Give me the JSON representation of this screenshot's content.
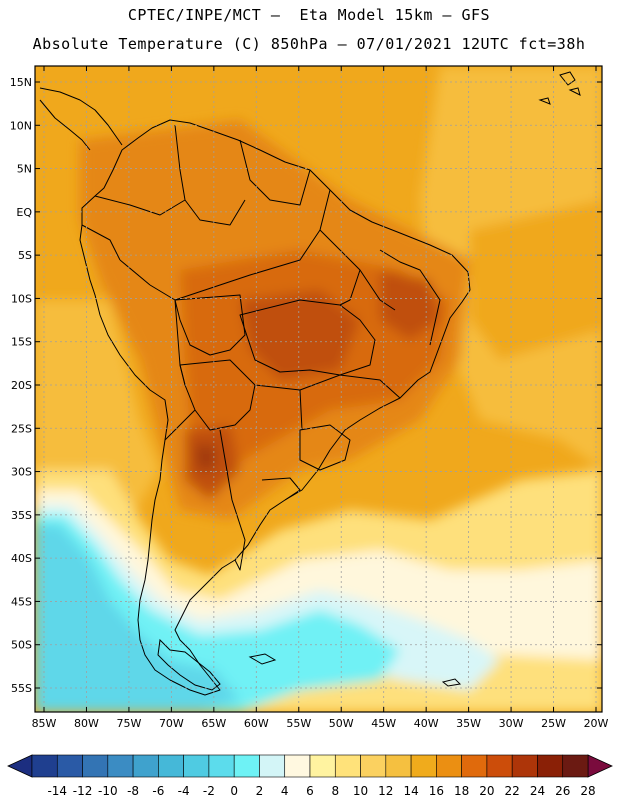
{
  "header": {
    "line1": "CPTEC/INPE/MCT –  Eta Model 15km – GFS",
    "line2": "Absolute Temperature (C) 850hPa – 07/01/2021 12UTC fct=38h"
  },
  "map": {
    "lat_labels": [
      "15N",
      "10N",
      "5N",
      "EQ",
      "5S",
      "10S",
      "15S",
      "20S",
      "25S",
      "30S",
      "35S",
      "40S",
      "45S",
      "50S",
      "55S"
    ],
    "lon_labels": [
      "85W",
      "80W",
      "75W",
      "70W",
      "65W",
      "60W",
      "55W",
      "50W",
      "45W",
      "40W",
      "35W",
      "30W",
      "25W",
      "20W"
    ],
    "lat_values": [
      15,
      10,
      5,
      0,
      -5,
      -10,
      -15,
      -20,
      -25,
      -30,
      -35,
      -40,
      -45,
      -50,
      -55
    ],
    "lon_values": [
      -85,
      -80,
      -75,
      -70,
      -65,
      -60,
      -55,
      -50,
      -45,
      -40,
      -35,
      -30,
      -25,
      -20
    ]
  },
  "colorbar": {
    "labels": [
      "-14",
      "-12",
      "-10",
      "-8",
      "-6",
      "-4",
      "-2",
      "0",
      "2",
      "4",
      "6",
      "8",
      "10",
      "12",
      "14",
      "16",
      "18",
      "20",
      "22",
      "24",
      "26",
      "28"
    ],
    "colors": [
      "#1f3f8f",
      "#2a5aa6",
      "#3374b4",
      "#3b8cc3",
      "#3fa2cd",
      "#45b8d8",
      "#4fcbe2",
      "#5cdcec",
      "#6ef2f5",
      "#d3f5f7",
      "#fff8e0",
      "#fff3a0",
      "#ffe27a",
      "#fbd160",
      "#f5c040",
      "#f0ab1c",
      "#eb8f12",
      "#e06a0c",
      "#cc4d0a",
      "#ad3509",
      "#8a2006",
      "#6b1a12"
    ],
    "under_color": "#1c2e80",
    "over_color": "#7a0b3d"
  },
  "colors": {
    "ocean_cold": "#5fd7e9",
    "ocean_cool": "#6ff1f5",
    "light": "#d8f6f8",
    "pale": "#fff7dc",
    "yellow": "#fee07c",
    "gold": "#f6bd3c",
    "orange": "#f0a81c",
    "deep_orange": "#e58713",
    "hot": "#d86a10",
    "very_hot": "#c05010",
    "hottest": "#a13a0c"
  }
}
